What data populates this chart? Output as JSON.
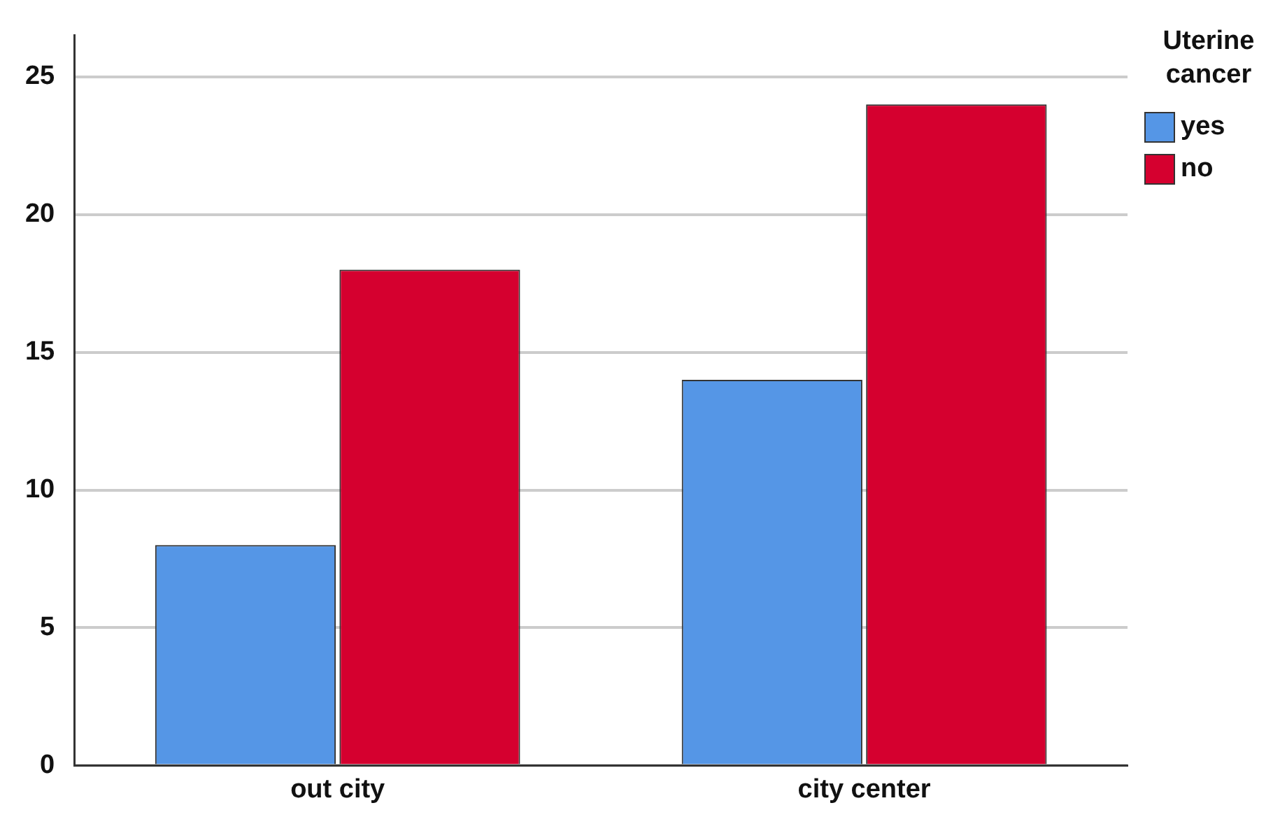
{
  "chart_data": {
    "type": "bar",
    "legend_title": "Uterine cancer",
    "categories": [
      "out city",
      "city center"
    ],
    "series": [
      {
        "name": "yes",
        "color": "#5596e6",
        "values": [
          8,
          14
        ]
      },
      {
        "name": "no",
        "color": "#d5002f",
        "values": [
          18,
          24
        ]
      }
    ],
    "ylim": [
      0,
      26.5
    ],
    "yticks": [
      0,
      5,
      10,
      15,
      20,
      25
    ],
    "grid": "y",
    "legend": "top right"
  }
}
